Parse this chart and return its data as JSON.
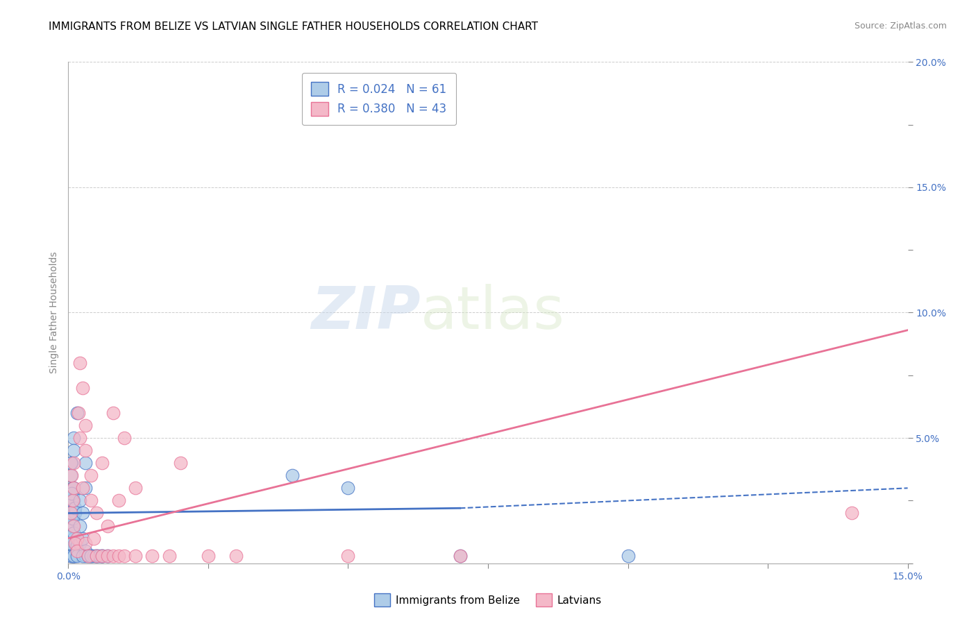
{
  "title": "IMMIGRANTS FROM BELIZE VS LATVIAN SINGLE FATHER HOUSEHOLDS CORRELATION CHART",
  "source": "Source: ZipAtlas.com",
  "ylabel": "Single Father Households",
  "xlim": [
    0.0,
    0.15
  ],
  "ylim": [
    0.0,
    0.2
  ],
  "series_blue": {
    "label": "Immigrants from Belize",
    "R": 0.024,
    "N": 61,
    "color": "#aecce8",
    "edge_color": "#4472c4",
    "x": [
      0.0005,
      0.001,
      0.0015,
      0.001,
      0.0008,
      0.0012,
      0.0006,
      0.001,
      0.0015,
      0.0005,
      0.001,
      0.0008,
      0.0012,
      0.0006,
      0.001,
      0.0015,
      0.0005,
      0.001,
      0.0008,
      0.0012,
      0.0006,
      0.001,
      0.0015,
      0.0005,
      0.001,
      0.0008,
      0.0012,
      0.0006,
      0.001,
      0.0015,
      0.0005,
      0.001,
      0.0008,
      0.0012,
      0.0006,
      0.001,
      0.0015,
      0.002,
      0.0025,
      0.003,
      0.002,
      0.0025,
      0.003,
      0.002,
      0.0025,
      0.003,
      0.0035,
      0.004,
      0.003,
      0.0045,
      0.005,
      0.004,
      0.005,
      0.006,
      0.0055,
      0.007,
      0.006,
      0.04,
      0.05,
      0.07,
      0.1
    ],
    "y": [
      0.015,
      0.02,
      0.01,
      0.025,
      0.03,
      0.008,
      0.018,
      0.022,
      0.005,
      0.035,
      0.012,
      0.028,
      0.007,
      0.04,
      0.05,
      0.06,
      0.003,
      0.01,
      0.015,
      0.02,
      0.025,
      0.03,
      0.005,
      0.008,
      0.012,
      0.018,
      0.022,
      0.028,
      0.003,
      0.007,
      0.04,
      0.045,
      0.003,
      0.003,
      0.003,
      0.003,
      0.003,
      0.008,
      0.01,
      0.005,
      0.015,
      0.02,
      0.003,
      0.025,
      0.003,
      0.03,
      0.003,
      0.003,
      0.04,
      0.003,
      0.003,
      0.003,
      0.003,
      0.003,
      0.003,
      0.003,
      0.003,
      0.035,
      0.03,
      0.003,
      0.003
    ]
  },
  "series_pink": {
    "label": "Latvians",
    "R": 0.38,
    "N": 43,
    "color": "#f4b8c8",
    "edge_color": "#e87296",
    "x": [
      0.0005,
      0.001,
      0.0008,
      0.0015,
      0.001,
      0.0012,
      0.0006,
      0.001,
      0.0015,
      0.002,
      0.0018,
      0.0025,
      0.002,
      0.003,
      0.0025,
      0.003,
      0.0035,
      0.004,
      0.003,
      0.0045,
      0.005,
      0.004,
      0.006,
      0.005,
      0.007,
      0.006,
      0.008,
      0.007,
      0.009,
      0.008,
      0.01,
      0.009,
      0.012,
      0.01,
      0.015,
      0.012,
      0.018,
      0.02,
      0.025,
      0.03,
      0.05,
      0.07,
      0.14
    ],
    "y": [
      0.02,
      0.015,
      0.025,
      0.01,
      0.03,
      0.008,
      0.035,
      0.04,
      0.005,
      0.05,
      0.06,
      0.07,
      0.08,
      0.008,
      0.03,
      0.045,
      0.003,
      0.025,
      0.055,
      0.01,
      0.003,
      0.035,
      0.003,
      0.02,
      0.003,
      0.04,
      0.003,
      0.015,
      0.003,
      0.06,
      0.003,
      0.025,
      0.003,
      0.05,
      0.003,
      0.03,
      0.003,
      0.04,
      0.003,
      0.003,
      0.003,
      0.003,
      0.02
    ]
  },
  "blue_line": {
    "x0": 0.0,
    "y0": 0.02,
    "x1": 0.07,
    "y1": 0.022,
    "x1_dash": 0.15,
    "y1_dash": 0.03
  },
  "pink_line": {
    "x0": 0.0,
    "y0": 0.01,
    "x1": 0.15,
    "y1": 0.093
  },
  "background_color": "#ffffff",
  "grid_color": "#cccccc",
  "watermark_zip": "ZIP",
  "watermark_atlas": "atlas",
  "title_fontsize": 11,
  "source_fontsize": 9,
  "axis_fontsize": 10
}
